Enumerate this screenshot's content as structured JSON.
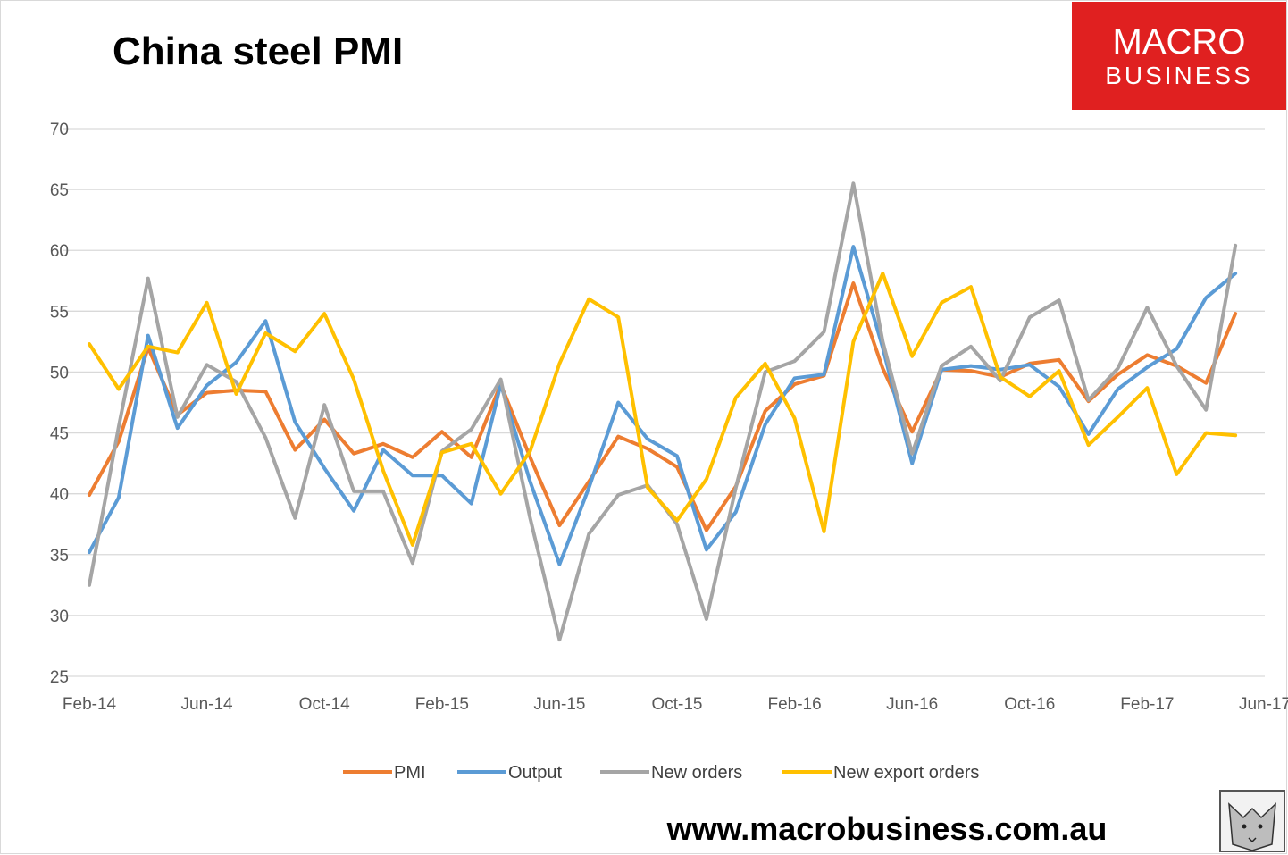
{
  "chart_data": {
    "type": "line",
    "title": "China steel PMI",
    "xlabel": "",
    "ylabel": "",
    "ylim": [
      25,
      70
    ],
    "yticks": [
      25,
      30,
      35,
      40,
      45,
      50,
      55,
      60,
      65,
      70
    ],
    "x_start": "Feb-14",
    "x_end": "Jun-17",
    "xticks": [
      "Feb-14",
      "Jun-14",
      "Oct-14",
      "Feb-15",
      "Jun-15",
      "Oct-15",
      "Feb-16",
      "Jun-16",
      "Oct-16",
      "Feb-17",
      "Jun-17"
    ],
    "categories": [
      "Feb-14",
      "Mar-14",
      "Apr-14",
      "May-14",
      "Jun-14",
      "Jul-14",
      "Aug-14",
      "Sep-14",
      "Oct-14",
      "Nov-14",
      "Dec-14",
      "Jan-15",
      "Feb-15",
      "Mar-15",
      "Apr-15",
      "May-15",
      "Jun-15",
      "Jul-15",
      "Aug-15",
      "Sep-15",
      "Oct-15",
      "Nov-15",
      "Dec-15",
      "Jan-16",
      "Feb-16",
      "Mar-16",
      "Apr-16",
      "May-16",
      "Jun-16",
      "Jul-16",
      "Aug-16",
      "Sep-16",
      "Oct-16",
      "Nov-16",
      "Dec-16",
      "Jan-17",
      "Feb-17",
      "Mar-17",
      "Apr-17",
      "May-17"
    ],
    "grid": true,
    "legend_position": "bottom",
    "series": [
      {
        "name": "PMI",
        "color": "#ED7D31",
        "values": [
          39.9,
          44.3,
          52.0,
          46.5,
          48.3,
          48.5,
          48.4,
          43.6,
          46.1,
          43.3,
          44.1,
          43.0,
          45.1,
          43.0,
          49.0,
          43.0,
          37.4,
          41.0,
          44.7,
          43.7,
          42.2,
          37.0,
          40.6,
          46.8,
          49.0,
          49.7,
          57.3,
          50.3,
          45.1,
          50.2,
          50.1,
          49.6,
          50.7,
          51.0,
          47.6,
          49.8,
          51.4,
          50.5,
          49.1,
          54.8
        ]
      },
      {
        "name": "Output",
        "color": "#5B9BD5",
        "values": [
          35.2,
          39.7,
          53.0,
          45.4,
          48.9,
          50.8,
          54.2,
          45.9,
          42.1,
          38.6,
          43.6,
          41.5,
          41.5,
          39.2,
          49.0,
          41.0,
          34.2,
          40.5,
          47.5,
          44.5,
          43.1,
          35.4,
          38.5,
          45.7,
          49.5,
          49.8,
          60.3,
          52.0,
          42.5,
          50.2,
          50.5,
          50.2,
          50.6,
          48.8,
          44.9,
          48.6,
          50.4,
          51.9,
          56.1,
          58.1
        ]
      },
      {
        "name": "New orders",
        "color": "#A5A5A5",
        "values": [
          32.5,
          45.5,
          57.7,
          46.3,
          50.6,
          49.2,
          44.6,
          38.0,
          47.3,
          40.2,
          40.2,
          34.3,
          43.5,
          45.3,
          49.4,
          38.0,
          28.0,
          36.7,
          39.9,
          40.7,
          37.5,
          29.7,
          40.5,
          50.0,
          50.9,
          53.3,
          65.5,
          52.5,
          43.3,
          50.5,
          52.1,
          49.3,
          54.5,
          55.9,
          47.7,
          50.3,
          55.3,
          50.5,
          46.9,
          60.4
        ]
      },
      {
        "name": "New export orders",
        "color": "#FFC000",
        "values": [
          52.3,
          48.6,
          52.1,
          51.6,
          55.7,
          48.2,
          53.2,
          51.7,
          54.8,
          49.4,
          41.9,
          35.8,
          43.4,
          44.1,
          40.0,
          43.5,
          50.7,
          56.0,
          54.5,
          40.5,
          37.8,
          41.2,
          47.9,
          50.7,
          46.2,
          36.9,
          52.5,
          58.1,
          51.3,
          55.7,
          57.0,
          49.6,
          48.0,
          50.1,
          44.0,
          46.3,
          48.7,
          41.6,
          45.0,
          44.8
        ]
      }
    ]
  },
  "branding": {
    "logo_line1": "MACRO",
    "logo_line2": "BUSINESS",
    "logo_bg": "#E02020",
    "website": "www.macrobusiness.com.au",
    "mascot_icon": "wolf-icon"
  }
}
